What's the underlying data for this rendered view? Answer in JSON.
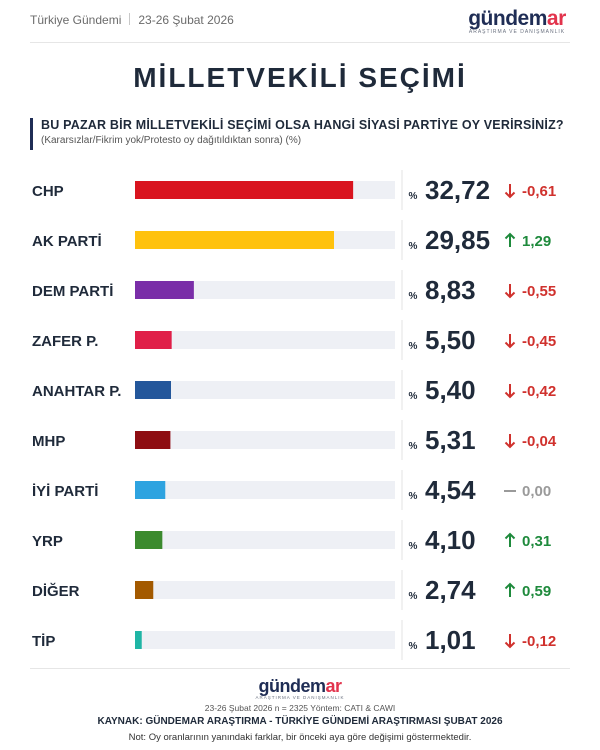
{
  "header": {
    "brand": "Türkiye Gündemi",
    "date": "23-26 Şubat 2026",
    "logo_main": "gündem",
    "logo_accent": "ar",
    "logo_sub": "ARAŞTIRMA VE DANIŞMANLIK"
  },
  "title": "MİLLETVEKİLİ SEÇİMİ",
  "question": "BU PAZAR BİR MİLLETVEKİLİ SEÇİMİ OLSA HANGİ SİYASİ PARTİYE OY VERİRSİNİZ?",
  "subquestion": "(Kararsızlar/Fikrim yok/Protesto oy dağıtıldıktan sonra) (%)",
  "chart_data": {
    "type": "bar",
    "orientation": "horizontal",
    "categories": [
      "CHP",
      "AK PARTİ",
      "DEM PARTİ",
      "ZAFER P.",
      "ANAHTAR P.",
      "MHP",
      "İYİ PARTİ",
      "YRP",
      "DİĞER",
      "TİP"
    ],
    "values": [
      32.72,
      29.85,
      8.83,
      5.5,
      5.4,
      5.31,
      4.54,
      4.1,
      2.74,
      1.01
    ],
    "value_labels": [
      "32,72",
      "29,85",
      "8,83",
      "5,50",
      "5,40",
      "5,31",
      "4,54",
      "4,10",
      "2,74",
      "1,01"
    ],
    "value_prefix": "%",
    "change_labels": [
      "-0,61",
      "1,29",
      "-0,55",
      "-0,45",
      "-0,42",
      "-0,04",
      "0,00",
      "0,31",
      "0,59",
      "-0,12"
    ],
    "change_direction": [
      "down",
      "up",
      "down",
      "down",
      "down",
      "down",
      "flat",
      "up",
      "up",
      "down"
    ],
    "colors": [
      "#d9141f",
      "#ffc20e",
      "#7a2ea8",
      "#e01f48",
      "#24579b",
      "#8e0d12",
      "#2ea3e0",
      "#3b8a2e",
      "#a35a00",
      "#1fb5a5"
    ],
    "xlim": [
      0,
      39
    ],
    "change_colors": {
      "up": "#1e8a3c",
      "down": "#d0312d",
      "flat": "#9a9a9a"
    },
    "track_color": "#eef0f5"
  },
  "footer": {
    "logo_main": "gündem",
    "logo_accent": "ar",
    "logo_sub": "ARAŞTIRMA VE DANIŞMANLIK",
    "meta": "23-26 Şubat 2026 n = 2325 Yöntem: CATI & CAWI",
    "source": "KAYNAK: GÜNDEMAR ARAŞTIRMA - TÜRKİYE GÜNDEMİ ARAŞTIRMASI ŞUBAT 2026",
    "note": "Not: Oy oranlarının yanındaki farklar, bir önceki aya göre değişimi göstermektedir."
  }
}
